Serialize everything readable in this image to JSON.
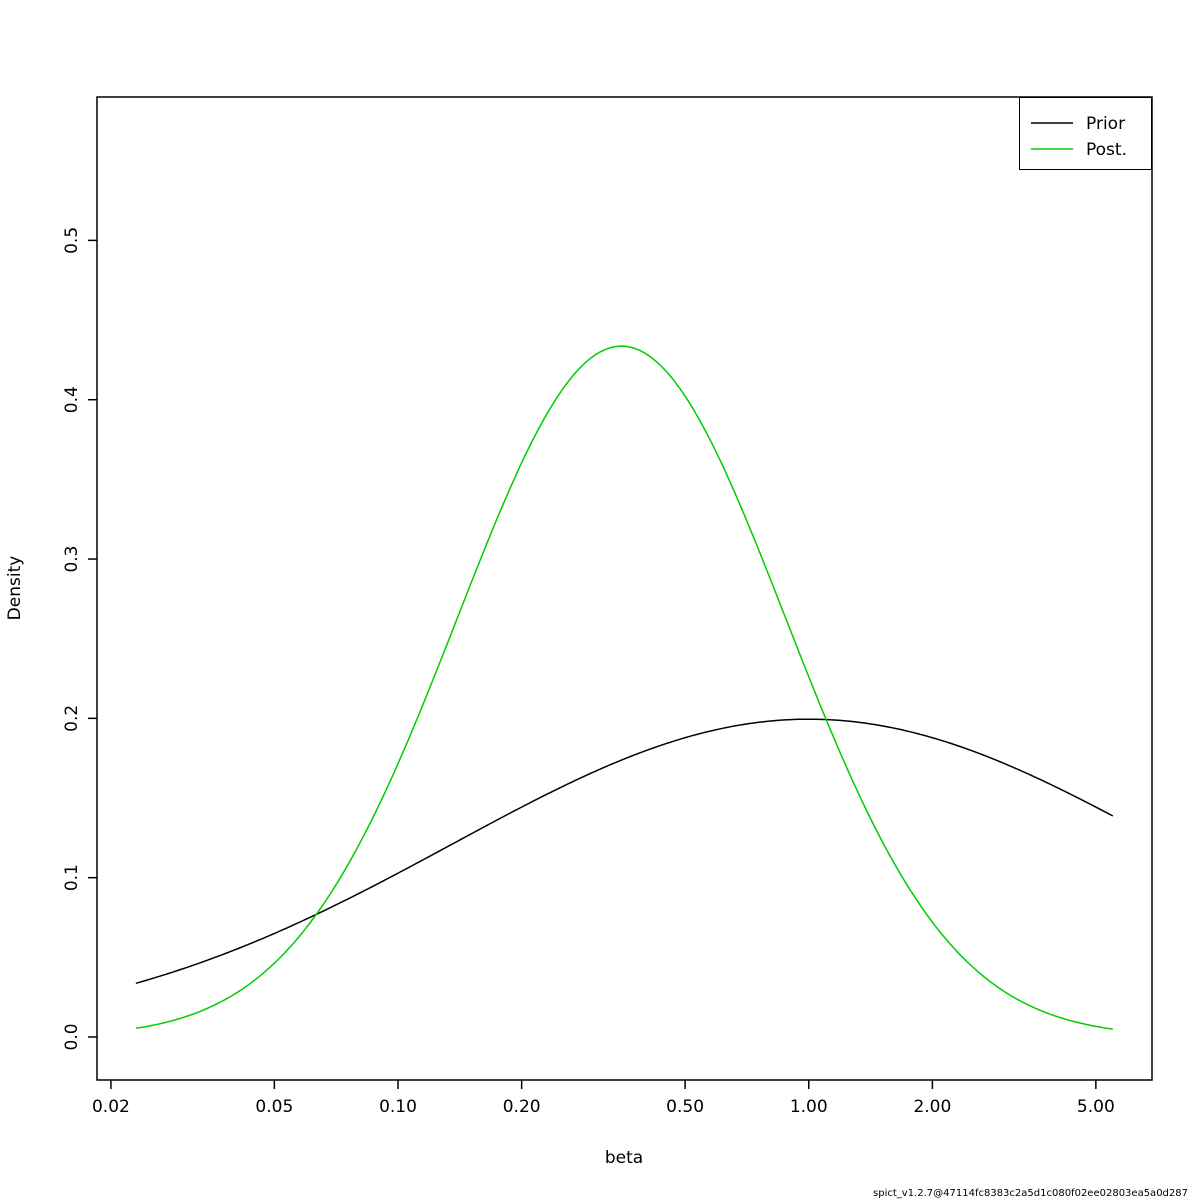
{
  "footer": {
    "text": "spict_v1.2.7@47114fc8383c2a5d1c080f02ee02803ea5a0d287"
  },
  "chart_data": {
    "type": "line",
    "title": "",
    "xlabel": "beta",
    "ylabel": "Density",
    "x_scale": "log",
    "xlim": [
      0.0185,
      6.85
    ],
    "ylim": [
      -0.027,
      0.59
    ],
    "x_data_range": [
      0.023,
      5.5
    ],
    "grid": false,
    "x_ticks": [
      0.02,
      0.05,
      0.1,
      0.2,
      0.5,
      1.0,
      2.0,
      5.0
    ],
    "x_tick_labels": [
      "0.02",
      "0.05",
      "0.10",
      "0.20",
      "0.50",
      "1.00",
      "2.00",
      "5.00"
    ],
    "y_ticks": [
      0.0,
      0.1,
      0.2,
      0.3,
      0.4,
      0.5
    ],
    "y_tick_labels": [
      "0.0",
      "0.1",
      "0.2",
      "0.3",
      "0.4",
      "0.5"
    ],
    "legend": {
      "position": "top-right"
    },
    "series": [
      {
        "name": "Prior",
        "color": "#000000",
        "model": "normal_density_of_log_x",
        "log_mean": 0.0,
        "log_sd": 2.0,
        "peak": {
          "x": 1.0,
          "y": 0.199
        },
        "sample_points": {
          "x": [
            0.023,
            0.05,
            0.1,
            0.2,
            0.35,
            0.5,
            0.7,
            1.0,
            1.5,
            2.0,
            3.0,
            4.0,
            5.0,
            5.5
          ],
          "y": [
            0.034,
            0.065,
            0.103,
            0.144,
            0.174,
            0.188,
            0.196,
            0.199,
            0.195,
            0.188,
            0.172,
            0.157,
            0.144,
            0.139
          ]
        }
      },
      {
        "name": "Post.",
        "color": "#00CD00",
        "model": "normal_density_of_log_x",
        "log_mean": -1.0498,
        "log_sd": 0.92,
        "peak": {
          "x": 0.35,
          "y": 0.434
        },
        "sample_points": {
          "x": [
            0.023,
            0.05,
            0.07,
            0.1,
            0.15,
            0.2,
            0.25,
            0.35,
            0.5,
            0.7,
            1.0,
            1.5,
            2.0,
            3.0,
            5.5
          ],
          "y": [
            0.005,
            0.046,
            0.094,
            0.172,
            0.284,
            0.36,
            0.406,
            0.434,
            0.402,
            0.326,
            0.226,
            0.124,
            0.072,
            0.028,
            0.005
          ]
        }
      }
    ]
  }
}
